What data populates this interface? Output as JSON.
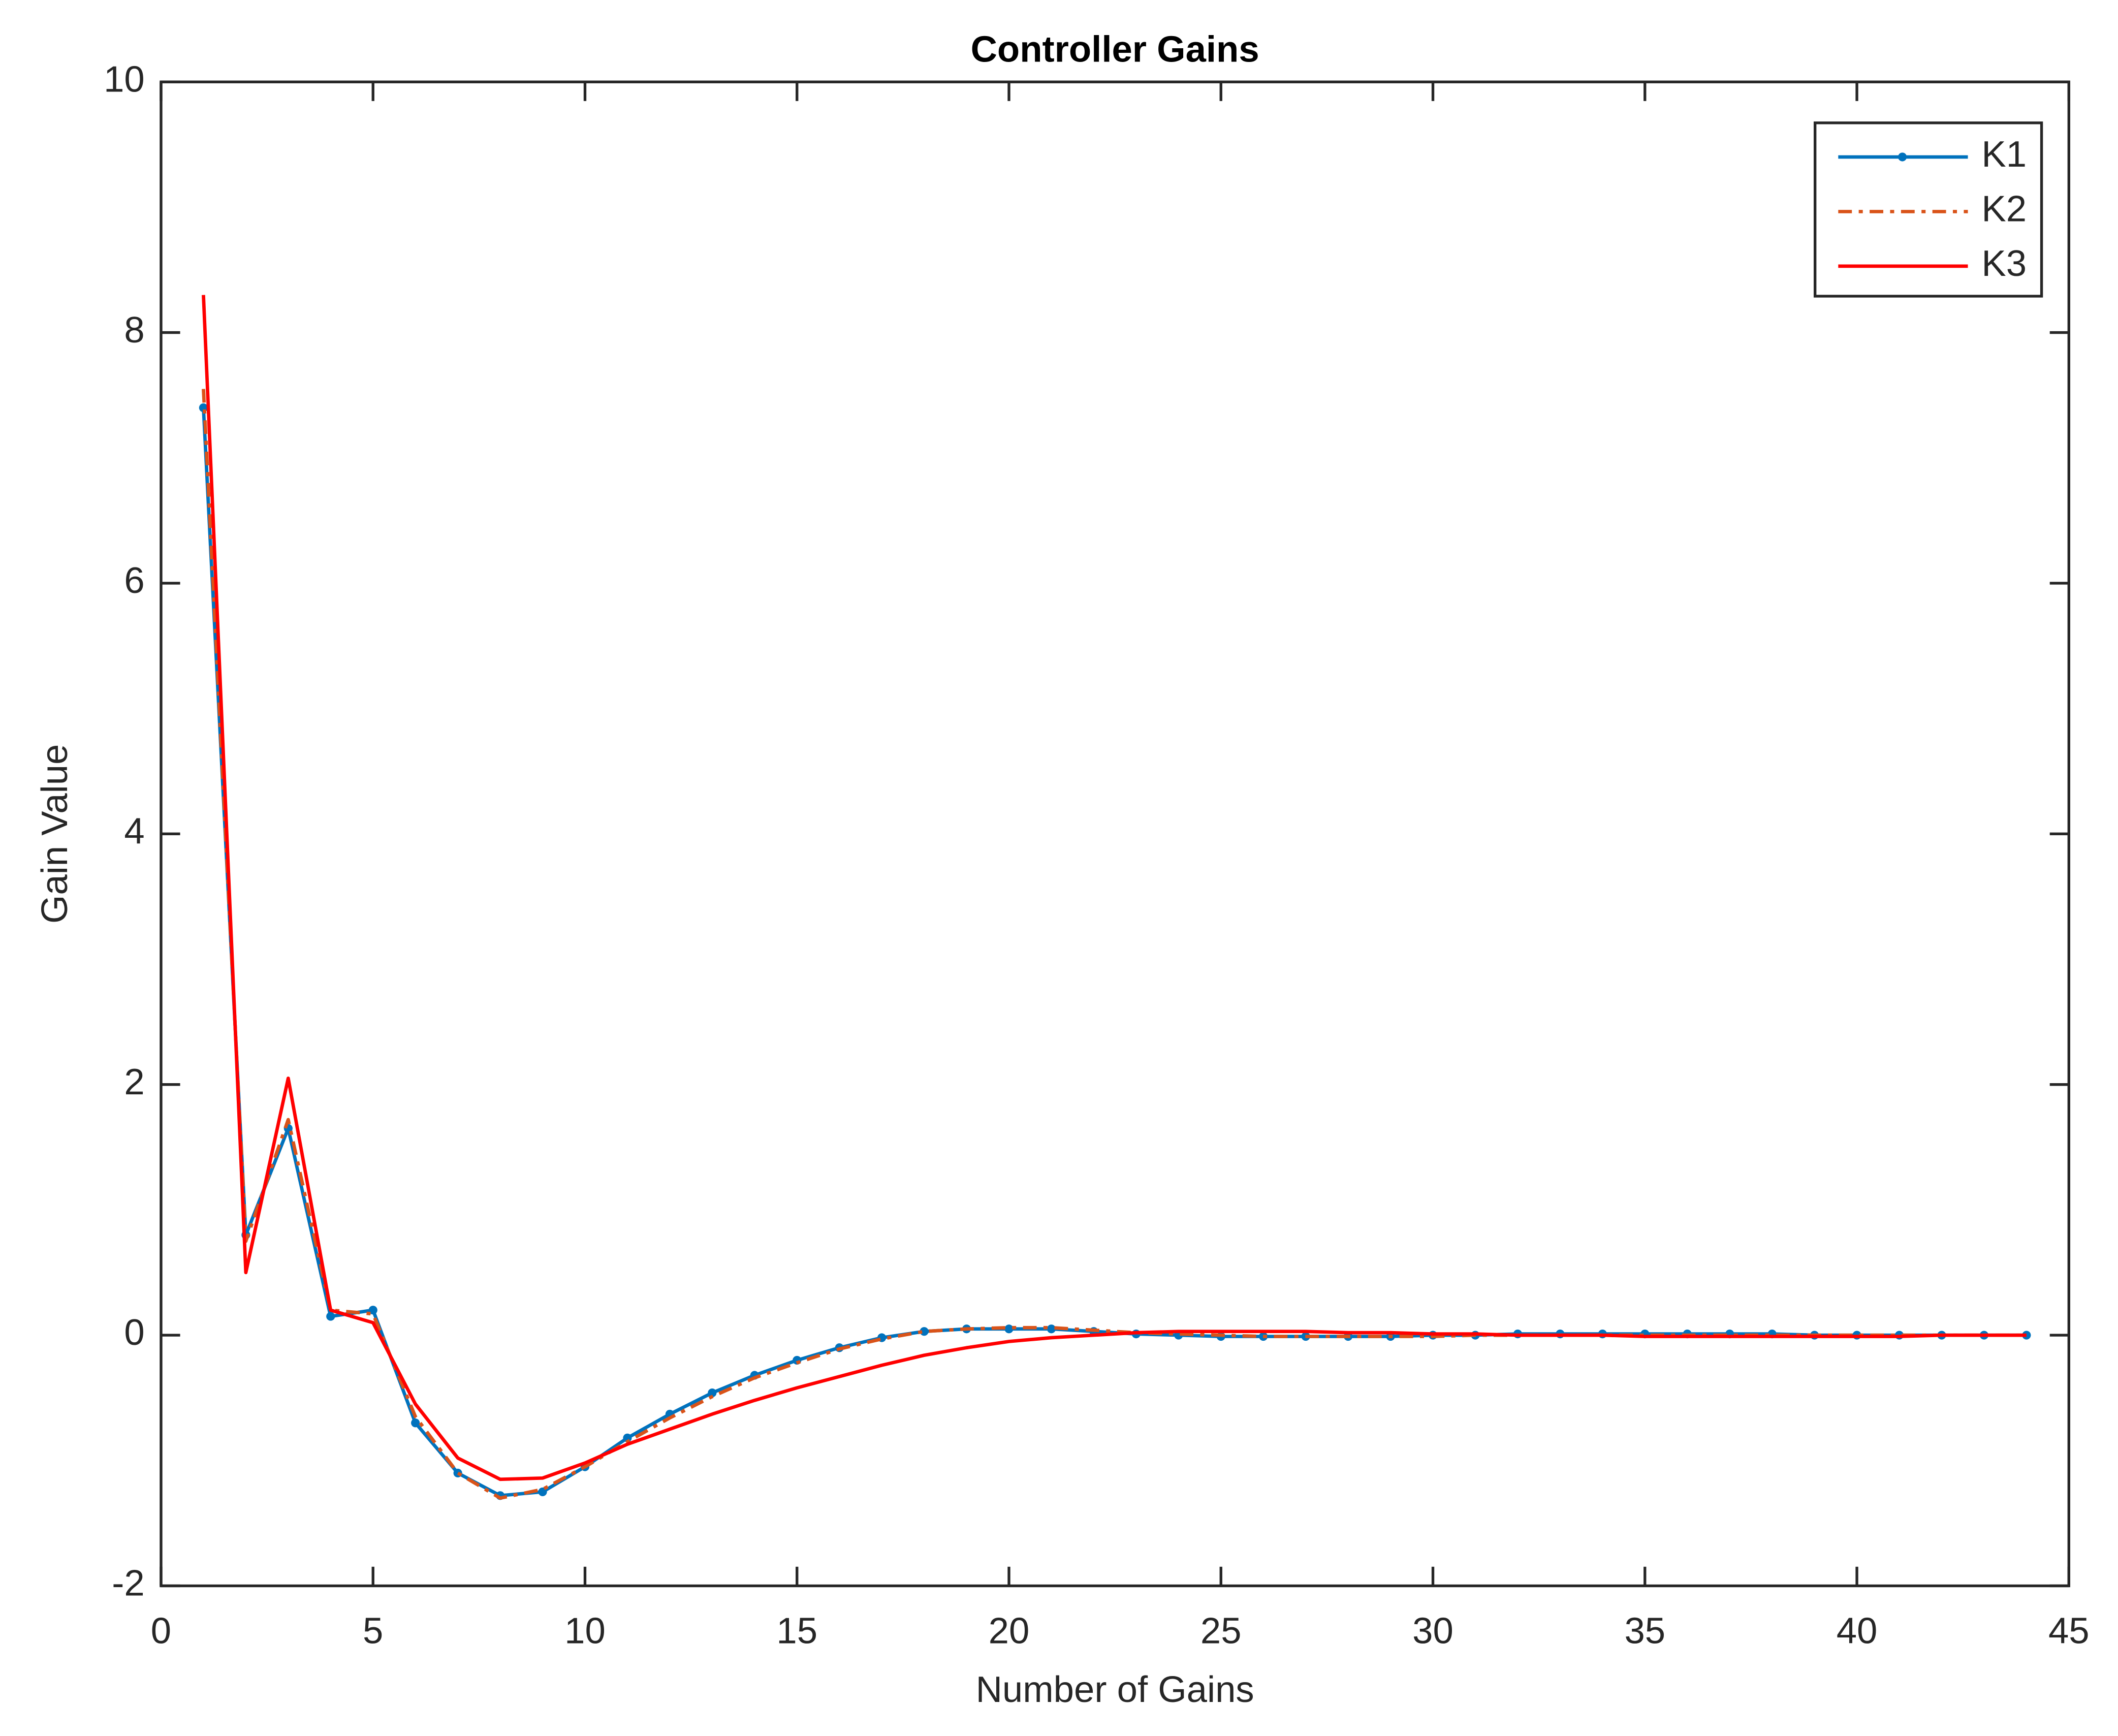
{
  "chart_data": {
    "type": "line",
    "title": "Controller Gains",
    "x_label": "Number of Gains",
    "y_label": "Gain Value",
    "x": [
      1,
      2,
      3,
      4,
      5,
      6,
      7,
      8,
      9,
      10,
      11,
      12,
      13,
      14,
      15,
      16,
      17,
      18,
      19,
      20,
      21,
      22,
      23,
      24,
      25,
      26,
      27,
      28,
      29,
      30,
      31,
      32,
      33,
      34,
      35,
      36,
      37,
      38,
      39,
      40,
      41,
      42,
      43,
      44
    ],
    "series": [
      {
        "name": "K1",
        "color": "#0072bd",
        "line_style": "solid",
        "marker": "dot",
        "values": [
          7.4,
          0.8,
          1.65,
          0.15,
          0.2,
          -0.7,
          -1.1,
          -1.28,
          -1.25,
          -1.05,
          -0.82,
          -0.63,
          -0.46,
          -0.32,
          -0.2,
          -0.1,
          -0.02,
          0.03,
          0.05,
          0.05,
          0.05,
          0.03,
          0.01,
          0,
          -0.01,
          -0.01,
          -0.01,
          -0.01,
          -0.01,
          0,
          0,
          0.01,
          0.01,
          0.01,
          0.01,
          0.01,
          0.01,
          0.01,
          0,
          0,
          0,
          0,
          0,
          0
        ]
      },
      {
        "name": "K2",
        "color": "#d95319",
        "line_style": "dashdot",
        "marker": "none",
        "values": [
          7.55,
          0.75,
          1.72,
          0.2,
          0.17,
          -0.65,
          -1.1,
          -1.3,
          -1.23,
          -1.05,
          -0.85,
          -0.66,
          -0.49,
          -0.34,
          -0.22,
          -0.11,
          -0.03,
          0.03,
          0.05,
          0.06,
          0.06,
          0.04,
          0.02,
          0.01,
          0,
          -0.01,
          -0.01,
          -0.01,
          -0.01,
          -0.01,
          0,
          0,
          0,
          0,
          0,
          0,
          0,
          0,
          0,
          0,
          0,
          0,
          0,
          0
        ]
      },
      {
        "name": "K3",
        "color": "#ff0000",
        "line_style": "solid",
        "marker": "none",
        "values": [
          8.3,
          0.5,
          2.05,
          0.2,
          0.1,
          -0.55,
          -0.98,
          -1.15,
          -1.14,
          -1.02,
          -0.87,
          -0.75,
          -0.63,
          -0.52,
          -0.42,
          -0.33,
          -0.24,
          -0.16,
          -0.1,
          -0.05,
          -0.02,
          0,
          0.02,
          0.03,
          0.03,
          0.03,
          0.03,
          0.02,
          0.02,
          0.01,
          0.01,
          0,
          0,
          0,
          -0.01,
          -0.01,
          -0.01,
          -0.01,
          -0.01,
          -0.01,
          -0.01,
          0,
          0,
          0
        ]
      }
    ],
    "xlim": [
      0,
      45
    ],
    "xticks": [
      0,
      5,
      10,
      15,
      20,
      25,
      30,
      35,
      40,
      45
    ],
    "ylim": [
      -2,
      10
    ],
    "yticks": [
      -2,
      0,
      2,
      4,
      6,
      8,
      10
    ],
    "grid": false,
    "legend_position": "upper-right"
  }
}
